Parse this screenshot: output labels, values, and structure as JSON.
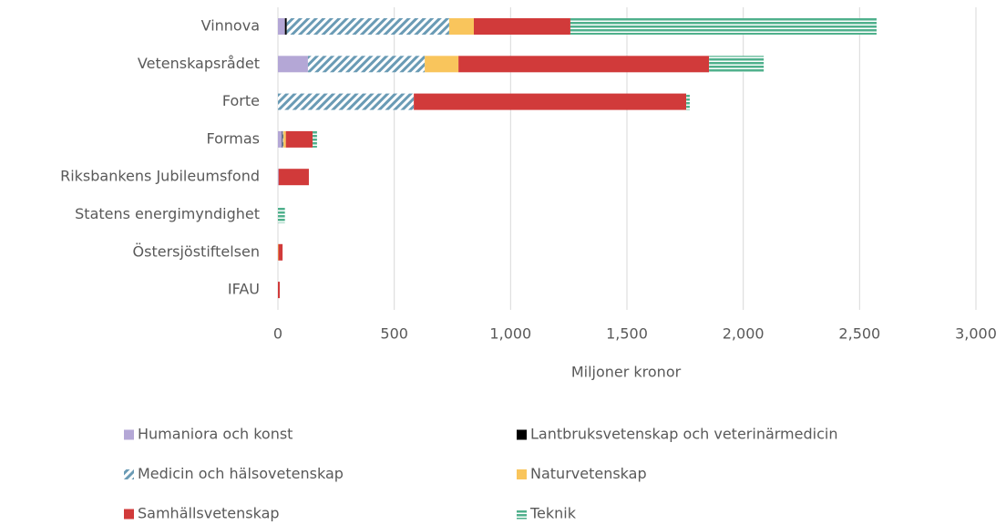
{
  "chart_data": {
    "type": "stacked_bar_horizontal",
    "categories": [
      "Vinnova",
      "Vetenskapsrådet",
      "Forte",
      "Formas",
      "Riksbankens Jubileumsfond",
      "Statens energimyndighet",
      "Östersjöstiftelsen",
      "IFAU"
    ],
    "series": [
      {
        "name": "Humaniora och konst",
        "color": "#b4a7d6",
        "pattern": "solid",
        "values": [
          30,
          129,
          0,
          18,
          3,
          0,
          0,
          0
        ]
      },
      {
        "name": "Lantbruksvetenskap och veterinärmedicin",
        "color": "#000000",
        "pattern": "solid",
        "values": [
          8,
          0,
          0,
          3,
          0,
          0,
          0,
          0
        ]
      },
      {
        "name": "Medicin och hälsovetenskap",
        "color": "#6a9bb5",
        "pattern": "diagonal",
        "values": [
          698,
          502,
          584,
          3,
          0,
          0,
          0,
          0
        ]
      },
      {
        "name": "Naturvetenskap",
        "color": "#f9c55c",
        "pattern": "solid",
        "values": [
          106,
          145,
          0,
          10,
          0,
          0,
          2,
          0
        ]
      },
      {
        "name": "Samhällsvetenskap",
        "color": "#d13a3a",
        "pattern": "solid",
        "values": [
          415,
          1077,
          1171,
          115,
          130,
          0,
          18,
          8
        ]
      },
      {
        "name": "Teknik",
        "color": "#4fb08c",
        "pattern": "horizontal",
        "values": [
          1316,
          235,
          15,
          19,
          0,
          30,
          0,
          0
        ]
      }
    ],
    "x_label": "Miljoner kronor",
    "xlim": [
      0,
      3000
    ],
    "xticks": [
      0,
      500,
      {
        "value": 1000,
        "label": "1,000"
      },
      {
        "value": 1500,
        "label": "1,500"
      },
      {
        "value": 2000,
        "label": "2,000"
      },
      {
        "value": 2500,
        "label": "2,500"
      },
      {
        "value": 3000,
        "label": "3,000"
      }
    ],
    "grid": true,
    "legend": "bottom"
  }
}
